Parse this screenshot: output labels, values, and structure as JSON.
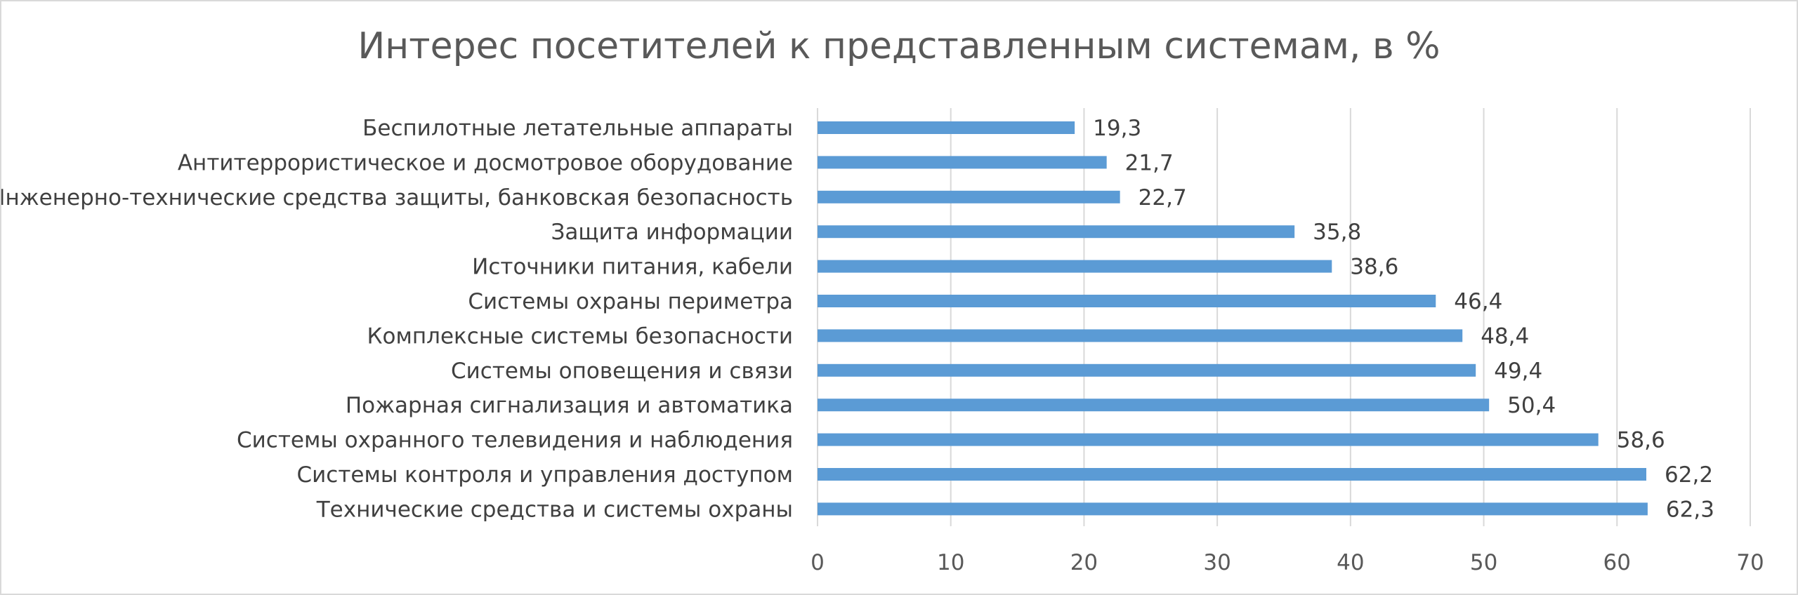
{
  "chart_data": {
    "type": "bar",
    "orientation": "horizontal",
    "title": "Интерес посетителей к представленным системам, в %",
    "categories": [
      "Беспилотные летательные аппараты",
      "Антитеррористическое и досмотровое оборудование",
      "Инженерно-технические средства защиты, банковская безопасность",
      "Защита информации",
      "Источники питания, кабели",
      "Системы охраны периметра",
      "Комплексные системы безопасности",
      "Системы оповещения и связи",
      "Пожарная сигнализация и автоматика",
      "Системы охранного телевидения и наблюдения",
      "Системы контроля и управления доступом",
      "Технические средства и системы охраны"
    ],
    "values": [
      19.3,
      21.7,
      22.7,
      35.8,
      38.6,
      46.4,
      48.4,
      49.4,
      50.4,
      58.6,
      62.2,
      62.3
    ],
    "value_labels": [
      "19,3",
      "21,7",
      "22,7",
      "35,8",
      "38,6",
      "46,4",
      "48,4",
      "49,4",
      "50,4",
      "58,6",
      "62,2",
      "62,3"
    ],
    "xlim": [
      0,
      70
    ],
    "xticks": [
      0,
      10,
      20,
      30,
      40,
      50,
      60,
      70
    ],
    "xlabel": "",
    "ylabel": "",
    "grid": true,
    "legend": "none",
    "bar_color": "#5b9bd5",
    "grid_color": "#d9d9d9"
  }
}
